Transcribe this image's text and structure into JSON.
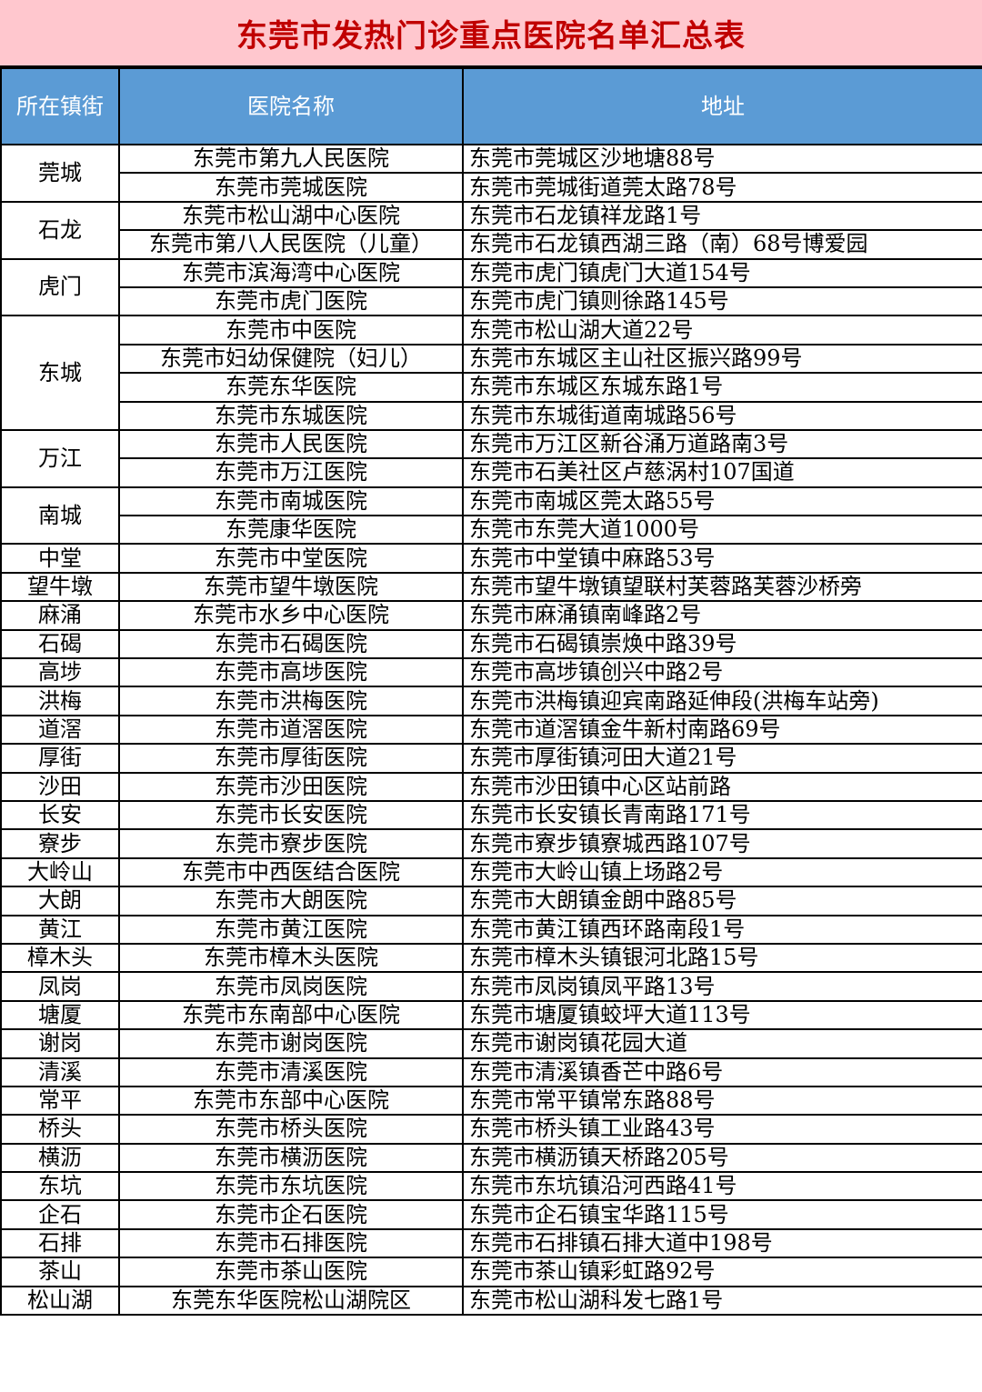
{
  "title": "东莞市发热门诊重点医院名单汇总表",
  "colors": {
    "title_bg": "#ffc7ce",
    "title_text": "#c00000",
    "header_bg": "#5b9bd5",
    "header_text": "#ffffff"
  },
  "headers": [
    "所在镇街",
    "医院名称",
    "地址"
  ],
  "groups": [
    {
      "town": "莞城",
      "rows": [
        [
          "东莞市第九人民医院",
          "东莞市莞城区沙地塘88号"
        ],
        [
          "东莞市莞城医院",
          "东莞市莞城街道莞太路78号"
        ]
      ]
    },
    {
      "town": "石龙",
      "rows": [
        [
          "东莞市松山湖中心医院",
          "东莞市石龙镇祥龙路1号"
        ],
        [
          "东莞市第八人民医院（儿童）",
          "东莞市石龙镇西湖三路（南）68号博爱园"
        ]
      ]
    },
    {
      "town": "虎门",
      "rows": [
        [
          "东莞市滨海湾中心医院",
          "东莞市虎门镇虎门大道154号"
        ],
        [
          "东莞市虎门医院",
          "东莞市虎门镇则徐路145号"
        ]
      ]
    },
    {
      "town": "东城",
      "rows": [
        [
          "东莞市中医院",
          "东莞市松山湖大道22号"
        ],
        [
          "东莞市妇幼保健院（妇儿）",
          "东莞市东城区主山社区振兴路99号"
        ],
        [
          "东莞东华医院",
          "东莞市东城区东城东路1号"
        ],
        [
          "东莞市东城医院",
          "东莞市东城街道南城路56号"
        ]
      ]
    },
    {
      "town": "万江",
      "rows": [
        [
          "东莞市人民医院",
          "东莞市万江区新谷涌万道路南3号"
        ],
        [
          "东莞市万江医院",
          "东莞市石美社区卢慈涡村107国道"
        ]
      ]
    },
    {
      "town": "南城",
      "rows": [
        [
          "东莞市南城医院",
          "东莞市南城区莞太路55号"
        ],
        [
          "东莞康华医院",
          "东莞市东莞大道1000号"
        ]
      ]
    },
    {
      "town": "中堂",
      "rows": [
        [
          "东莞市中堂医院",
          "东莞市中堂镇中麻路53号"
        ]
      ]
    },
    {
      "town": "望牛墩",
      "rows": [
        [
          "东莞市望牛墩医院",
          "东莞市望牛墩镇望联村芙蓉路芙蓉沙桥旁"
        ]
      ]
    },
    {
      "town": "麻涌",
      "rows": [
        [
          "东莞市水乡中心医院",
          "东莞市麻涌镇南峰路2号"
        ]
      ]
    },
    {
      "town": "石碣",
      "rows": [
        [
          "东莞市石碣医院",
          "东莞市石碣镇崇焕中路39号"
        ]
      ]
    },
    {
      "town": "高埗",
      "rows": [
        [
          "东莞市高埗医院",
          "东莞市高埗镇创兴中路2号"
        ]
      ]
    },
    {
      "town": "洪梅",
      "rows": [
        [
          "东莞市洪梅医院",
          "东莞市洪梅镇迎宾南路延伸段(洪梅车站旁)"
        ]
      ]
    },
    {
      "town": "道滘",
      "rows": [
        [
          "东莞市道滘医院",
          "东莞市道滘镇金牛新村南路69号"
        ]
      ]
    },
    {
      "town": "厚街",
      "rows": [
        [
          "东莞市厚街医院",
          "东莞市厚街镇河田大道21号"
        ]
      ]
    },
    {
      "town": "沙田",
      "rows": [
        [
          "东莞市沙田医院",
          "东莞市沙田镇中心区站前路"
        ]
      ]
    },
    {
      "town": "长安",
      "rows": [
        [
          "东莞市长安医院",
          "东莞市长安镇长青南路171号"
        ]
      ]
    },
    {
      "town": "寮步",
      "rows": [
        [
          "东莞市寮步医院",
          "东莞市寮步镇寮城西路107号"
        ]
      ]
    },
    {
      "town": "大岭山",
      "rows": [
        [
          "东莞市中西医结合医院",
          "东莞市大岭山镇上场路2号"
        ]
      ]
    },
    {
      "town": "大朗",
      "rows": [
        [
          "东莞市大朗医院",
          "东莞市大朗镇金朗中路85号"
        ]
      ]
    },
    {
      "town": "黄江",
      "rows": [
        [
          "东莞市黄江医院",
          "东莞市黄江镇西环路南段1号"
        ]
      ]
    },
    {
      "town": "樟木头",
      "rows": [
        [
          "东莞市樟木头医院",
          "东莞市樟木头镇银河北路15号"
        ]
      ]
    },
    {
      "town": "凤岗",
      "rows": [
        [
          "东莞市凤岗医院",
          "东莞市凤岗镇凤平路13号"
        ]
      ]
    },
    {
      "town": "塘厦",
      "rows": [
        [
          "东莞市东南部中心医院",
          "东莞市塘厦镇蛟坪大道113号"
        ]
      ]
    },
    {
      "town": "谢岗",
      "rows": [
        [
          "东莞市谢岗医院",
          "东莞市谢岗镇花园大道"
        ]
      ]
    },
    {
      "town": "清溪",
      "rows": [
        [
          "东莞市清溪医院",
          "东莞市清溪镇香芒中路6号"
        ]
      ]
    },
    {
      "town": "常平",
      "rows": [
        [
          "东莞市东部中心医院",
          "东莞市常平镇常东路88号"
        ]
      ]
    },
    {
      "town": "桥头",
      "rows": [
        [
          "东莞市桥头医院",
          "东莞市桥头镇工业路43号"
        ]
      ]
    },
    {
      "town": "横沥",
      "rows": [
        [
          "东莞市横沥医院",
          "东莞市横沥镇天桥路205号"
        ]
      ]
    },
    {
      "town": "东坑",
      "rows": [
        [
          "东莞市东坑医院",
          "东莞市东坑镇沿河西路41号"
        ]
      ]
    },
    {
      "town": "企石",
      "rows": [
        [
          "东莞市企石医院",
          "东莞市企石镇宝华路115号"
        ]
      ]
    },
    {
      "town": "石排",
      "rows": [
        [
          "东莞市石排医院",
          "东莞市石排镇石排大道中198号"
        ]
      ]
    },
    {
      "town": "茶山",
      "rows": [
        [
          "东莞市茶山医院",
          "东莞市茶山镇彩虹路92号"
        ]
      ]
    },
    {
      "town": "松山湖",
      "rows": [
        [
          "东莞东华医院松山湖院区",
          "东莞市松山湖科发七路1号"
        ]
      ]
    }
  ]
}
